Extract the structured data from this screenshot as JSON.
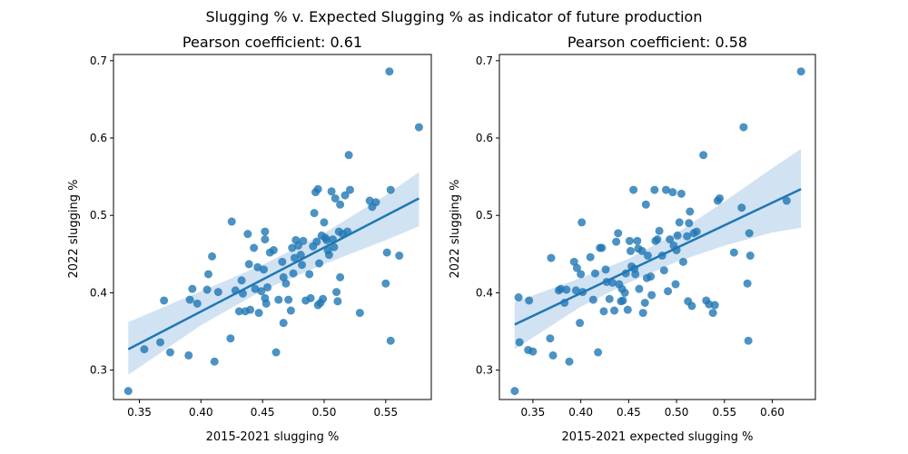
{
  "suptitle": "Slugging % v. Expected Slugging % as indicator of future production",
  "colors": {
    "points": "#1f77b4",
    "line": "#1f77b4",
    "band": "#c6dbef"
  },
  "chart_data": [
    {
      "type": "scatter",
      "title": "Pearson coefficient: 0.61",
      "xlabel": "2015-2021 slugging %",
      "ylabel": "2022 slugging %",
      "xlim": [
        0.329,
        0.587
      ],
      "ylim": [
        0.262,
        0.708
      ],
      "xticks": [
        0.35,
        0.4,
        0.45,
        0.5,
        0.55
      ],
      "xtick_labels": [
        "0.35",
        "0.40",
        "0.45",
        "0.50",
        "0.55"
      ],
      "yticks": [
        0.3,
        0.4,
        0.5,
        0.6,
        0.7
      ],
      "ytick_labels": [
        "0.3",
        "0.4",
        "0.5",
        "0.6",
        "0.7"
      ],
      "regression": {
        "x": [
          0.341,
          0.577
        ],
        "y": [
          0.327,
          0.522
        ]
      },
      "ci_band": {
        "x": [
          0.341,
          0.4,
          0.45,
          0.5,
          0.55,
          0.577
        ],
        "lower": [
          0.294,
          0.358,
          0.403,
          0.437,
          0.468,
          0.486
        ],
        "upper": [
          0.362,
          0.402,
          0.436,
          0.477,
          0.526,
          0.556
        ]
      },
      "points": [
        [
          0.341,
          0.273
        ],
        [
          0.354,
          0.327
        ],
        [
          0.367,
          0.336
        ],
        [
          0.37,
          0.39
        ],
        [
          0.375,
          0.323
        ],
        [
          0.39,
          0.319
        ],
        [
          0.391,
          0.391
        ],
        [
          0.393,
          0.405
        ],
        [
          0.397,
          0.386
        ],
        [
          0.405,
          0.404
        ],
        [
          0.406,
          0.424
        ],
        [
          0.409,
          0.447
        ],
        [
          0.411,
          0.311
        ],
        [
          0.414,
          0.401
        ],
        [
          0.424,
          0.341
        ],
        [
          0.425,
          0.492
        ],
        [
          0.428,
          0.403
        ],
        [
          0.431,
          0.376
        ],
        [
          0.433,
          0.416
        ],
        [
          0.434,
          0.399
        ],
        [
          0.436,
          0.376
        ],
        [
          0.438,
          0.476
        ],
        [
          0.439,
          0.437
        ],
        [
          0.44,
          0.378
        ],
        [
          0.443,
          0.458
        ],
        [
          0.444,
          0.405
        ],
        [
          0.446,
          0.433
        ],
        [
          0.447,
          0.374
        ],
        [
          0.449,
          0.402
        ],
        [
          0.451,
          0.43
        ],
        [
          0.452,
          0.393
        ],
        [
          0.452,
          0.479
        ],
        [
          0.452,
          0.469
        ],
        [
          0.453,
          0.386
        ],
        [
          0.454,
          0.407
        ],
        [
          0.456,
          0.452
        ],
        [
          0.459,
          0.455
        ],
        [
          0.461,
          0.323
        ],
        [
          0.463,
          0.391
        ],
        [
          0.466,
          0.44
        ],
        [
          0.467,
          0.42
        ],
        [
          0.467,
          0.361
        ],
        [
          0.469,
          0.412
        ],
        [
          0.471,
          0.391
        ],
        [
          0.473,
          0.377
        ],
        [
          0.474,
          0.458
        ],
        [
          0.475,
          0.425
        ],
        [
          0.476,
          0.445
        ],
        [
          0.477,
          0.468
        ],
        [
          0.479,
          0.461
        ],
        [
          0.481,
          0.449
        ],
        [
          0.482,
          0.436
        ],
        [
          0.483,
          0.467
        ],
        [
          0.485,
          0.39
        ],
        [
          0.488,
          0.424
        ],
        [
          0.489,
          0.393
        ],
        [
          0.491,
          0.46
        ],
        [
          0.492,
          0.503
        ],
        [
          0.493,
          0.53
        ],
        [
          0.494,
          0.466
        ],
        [
          0.495,
          0.534
        ],
        [
          0.495,
          0.384
        ],
        [
          0.496,
          0.438
        ],
        [
          0.497,
          0.387
        ],
        [
          0.498,
          0.474
        ],
        [
          0.499,
          0.392
        ],
        [
          0.5,
          0.491
        ],
        [
          0.501,
          0.471
        ],
        [
          0.502,
          0.468
        ],
        [
          0.503,
          0.455
        ],
        [
          0.504,
          0.449
        ],
        [
          0.506,
          0.531
        ],
        [
          0.507,
          0.469
        ],
        [
          0.508,
          0.459
        ],
        [
          0.509,
          0.522
        ],
        [
          0.51,
          0.401
        ],
        [
          0.511,
          0.389
        ],
        [
          0.512,
          0.479
        ],
        [
          0.513,
          0.514
        ],
        [
          0.513,
          0.42
        ],
        [
          0.515,
          0.476
        ],
        [
          0.517,
          0.526
        ],
        [
          0.519,
          0.479
        ],
        [
          0.52,
          0.578
        ],
        [
          0.521,
          0.533
        ],
        [
          0.529,
          0.374
        ],
        [
          0.537,
          0.519
        ],
        [
          0.539,
          0.511
        ],
        [
          0.542,
          0.517
        ],
        [
          0.55,
          0.412
        ],
        [
          0.551,
          0.452
        ],
        [
          0.553,
          0.686
        ],
        [
          0.554,
          0.338
        ],
        [
          0.554,
          0.533
        ],
        [
          0.561,
          0.448
        ],
        [
          0.577,
          0.614
        ]
      ]
    },
    {
      "type": "scatter",
      "title": "Pearson coefficient: 0.58",
      "xlabel": "2015-2021 expected slugging %",
      "ylabel": "2022 slugging %",
      "xlim": [
        0.315,
        0.645
      ],
      "ylim": [
        0.262,
        0.708
      ],
      "xticks": [
        0.35,
        0.4,
        0.45,
        0.5,
        0.55,
        0.6
      ],
      "xtick_labels": [
        "0.35",
        "0.40",
        "0.45",
        "0.50",
        "0.55",
        "0.60"
      ],
      "yticks": [
        0.3,
        0.4,
        0.5,
        0.6,
        0.7
      ],
      "ytick_labels": [
        "0.3",
        "0.4",
        "0.5",
        "0.6",
        "0.7"
      ],
      "regression": {
        "x": [
          0.331,
          0.63
        ],
        "y": [
          0.359,
          0.534
        ]
      },
      "ci_band": {
        "x": [
          0.331,
          0.4,
          0.45,
          0.5,
          0.55,
          0.6,
          0.63
        ],
        "lower": [
          0.327,
          0.382,
          0.413,
          0.44,
          0.461,
          0.478,
          0.484
        ],
        "upper": [
          0.388,
          0.419,
          0.444,
          0.477,
          0.518,
          0.561,
          0.586
        ]
      },
      "points": [
        [
          0.331,
          0.273
        ],
        [
          0.335,
          0.394
        ],
        [
          0.336,
          0.336
        ],
        [
          0.345,
          0.326
        ],
        [
          0.346,
          0.39
        ],
        [
          0.35,
          0.324
        ],
        [
          0.368,
          0.341
        ],
        [
          0.369,
          0.445
        ],
        [
          0.371,
          0.319
        ],
        [
          0.377,
          0.403
        ],
        [
          0.379,
          0.405
        ],
        [
          0.383,
          0.387
        ],
        [
          0.385,
          0.404
        ],
        [
          0.388,
          0.311
        ],
        [
          0.393,
          0.44
        ],
        [
          0.395,
          0.403
        ],
        [
          0.396,
          0.432
        ],
        [
          0.399,
          0.361
        ],
        [
          0.4,
          0.424
        ],
        [
          0.401,
          0.491
        ],
        [
          0.402,
          0.401
        ],
        [
          0.41,
          0.446
        ],
        [
          0.413,
          0.391
        ],
        [
          0.415,
          0.425
        ],
        [
          0.418,
          0.323
        ],
        [
          0.42,
          0.458
        ],
        [
          0.422,
          0.458
        ],
        [
          0.424,
          0.376
        ],
        [
          0.426,
          0.43
        ],
        [
          0.427,
          0.414
        ],
        [
          0.43,
          0.392
        ],
        [
          0.433,
          0.413
        ],
        [
          0.435,
          0.377
        ],
        [
          0.437,
          0.466
        ],
        [
          0.439,
          0.477
        ],
        [
          0.44,
          0.411
        ],
        [
          0.442,
          0.389
        ],
        [
          0.443,
          0.405
        ],
        [
          0.444,
          0.39
        ],
        [
          0.446,
          0.4
        ],
        [
          0.447,
          0.425
        ],
        [
          0.449,
          0.378
        ],
        [
          0.451,
          0.467
        ],
        [
          0.452,
          0.454
        ],
        [
          0.453,
          0.434
        ],
        [
          0.455,
          0.533
        ],
        [
          0.456,
          0.431
        ],
        [
          0.457,
          0.424
        ],
        [
          0.459,
          0.467
        ],
        [
          0.46,
          0.457
        ],
        [
          0.461,
          0.405
        ],
        [
          0.464,
          0.454
        ],
        [
          0.465,
          0.374
        ],
        [
          0.467,
          0.387
        ],
        [
          0.468,
          0.514
        ],
        [
          0.469,
          0.419
        ],
        [
          0.47,
          0.448
        ],
        [
          0.473,
          0.421
        ],
        [
          0.474,
          0.397
        ],
        [
          0.477,
          0.533
        ],
        [
          0.478,
          0.467
        ],
        [
          0.48,
          0.469
        ],
        [
          0.482,
          0.48
        ],
        [
          0.485,
          0.448
        ],
        [
          0.487,
          0.429
        ],
        [
          0.489,
          0.533
        ],
        [
          0.491,
          0.402
        ],
        [
          0.493,
          0.469
        ],
        [
          0.496,
          0.53
        ],
        [
          0.497,
          0.461
        ],
        [
          0.499,
          0.411
        ],
        [
          0.5,
          0.455
        ],
        [
          0.501,
          0.474
        ],
        [
          0.503,
          0.491
        ],
        [
          0.505,
          0.528
        ],
        [
          0.507,
          0.44
        ],
        [
          0.511,
          0.473
        ],
        [
          0.512,
          0.389
        ],
        [
          0.513,
          0.49
        ],
        [
          0.514,
          0.505
        ],
        [
          0.516,
          0.383
        ],
        [
          0.518,
          0.477
        ],
        [
          0.521,
          0.479
        ],
        [
          0.528,
          0.578
        ],
        [
          0.531,
          0.39
        ],
        [
          0.534,
          0.385
        ],
        [
          0.538,
          0.374
        ],
        [
          0.54,
          0.384
        ],
        [
          0.543,
          0.519
        ],
        [
          0.545,
          0.522
        ],
        [
          0.56,
          0.452
        ],
        [
          0.568,
          0.51
        ],
        [
          0.57,
          0.614
        ],
        [
          0.574,
          0.412
        ],
        [
          0.575,
          0.338
        ],
        [
          0.576,
          0.477
        ],
        [
          0.577,
          0.448
        ],
        [
          0.615,
          0.519
        ],
        [
          0.63,
          0.686
        ]
      ]
    }
  ]
}
